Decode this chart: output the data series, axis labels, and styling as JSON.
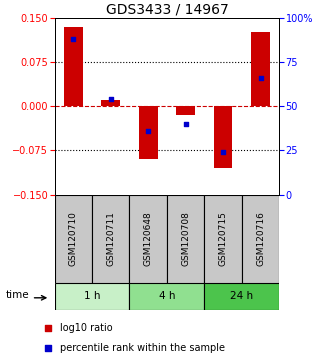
{
  "title": "GDS3433 / 14967",
  "samples": [
    "GSM120710",
    "GSM120711",
    "GSM120648",
    "GSM120708",
    "GSM120715",
    "GSM120716"
  ],
  "log10_ratio": [
    0.135,
    0.01,
    -0.09,
    -0.015,
    -0.105,
    0.125
  ],
  "percentile_rank": [
    88,
    54,
    36,
    40,
    24,
    66
  ],
  "time_groups": [
    {
      "label": "1 h",
      "start": 0,
      "end": 2,
      "color": "#c8f0c8"
    },
    {
      "label": "4 h",
      "start": 2,
      "end": 4,
      "color": "#90e090"
    },
    {
      "label": "24 h",
      "start": 4,
      "end": 6,
      "color": "#4cc44c"
    }
  ],
  "ylim_left": [
    -0.15,
    0.15
  ],
  "ylim_right": [
    0,
    100
  ],
  "yticks_left": [
    -0.15,
    -0.075,
    0,
    0.075,
    0.15
  ],
  "yticks_right": [
    0,
    25,
    50,
    75,
    100
  ],
  "bar_color": "#cc0000",
  "dot_color": "#0000cc",
  "zero_line_color": "#cc0000",
  "grid_color": "#000000",
  "sample_box_color": "#c8c8c8",
  "title_fontsize": 10,
  "tick_fontsize": 7,
  "label_fontsize": 7.5,
  "sample_label_fontsize": 6.5,
  "legend_fontsize": 7
}
